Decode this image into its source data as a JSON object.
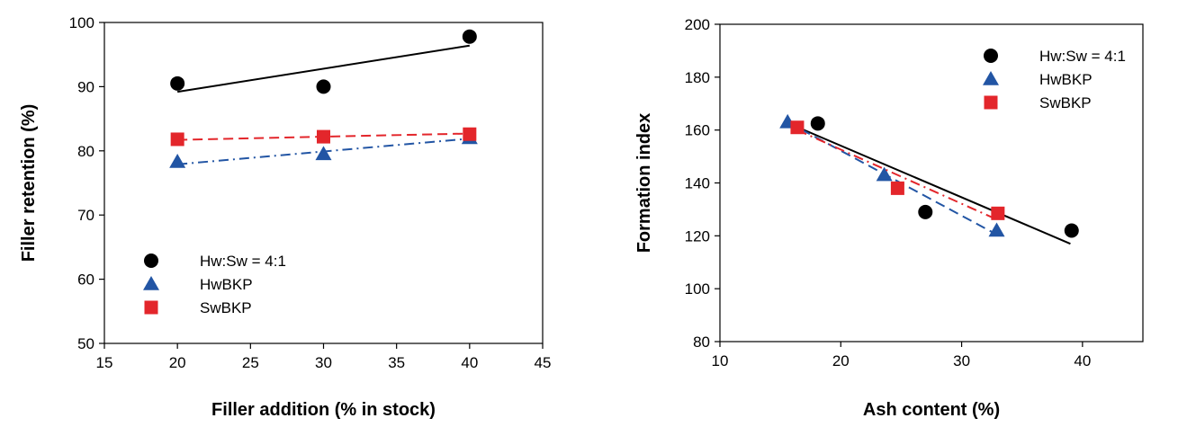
{
  "chart_data": [
    {
      "type": "scatter",
      "xlabel": "Filler addition (% in stock)",
      "ylabel": "Filler retention (%)",
      "xlim": [
        15,
        45
      ],
      "ylim": [
        50,
        100
      ],
      "xticks": [
        15,
        20,
        25,
        30,
        35,
        40,
        45
      ],
      "yticks": [
        50,
        60,
        70,
        80,
        90,
        100
      ],
      "grid": false,
      "legend_position": "bottom-left",
      "series": [
        {
          "name": "Hw:Sw = 4:1",
          "marker": "circle",
          "color": "#000000",
          "line_style": "solid",
          "points": [
            [
              20,
              90.5
            ],
            [
              30,
              90.0
            ],
            [
              40,
              97.8
            ]
          ],
          "fit": [
            [
              20,
              89.2
            ],
            [
              40,
              96.4
            ]
          ]
        },
        {
          "name": "HwBKP",
          "marker": "triangle",
          "color": "#2255a4",
          "line_style": "dashdot",
          "points": [
            [
              20,
              78.3
            ],
            [
              30,
              79.5
            ],
            [
              40,
              82.0
            ]
          ],
          "fit": [
            [
              20,
              77.9
            ],
            [
              40,
              81.9
            ]
          ]
        },
        {
          "name": "SwBKP",
          "marker": "square",
          "color": "#e3262b",
          "line_style": "dashed",
          "points": [
            [
              20,
              81.8
            ],
            [
              30,
              82.2
            ],
            [
              40,
              82.6
            ]
          ],
          "fit": [
            [
              20,
              81.7
            ],
            [
              40,
              82.7
            ]
          ]
        }
      ]
    },
    {
      "type": "scatter",
      "xlabel": "Ash content (%)",
      "ylabel": "Formation index",
      "xlim": [
        10,
        45
      ],
      "ylim": [
        80,
        200
      ],
      "xticks": [
        10,
        20,
        30,
        40
      ],
      "yticks": [
        80,
        100,
        120,
        140,
        160,
        180,
        200
      ],
      "grid": false,
      "legend_position": "top-right",
      "series": [
        {
          "name": "Hw:Sw = 4:1",
          "marker": "circle",
          "color": "#000000",
          "line_style": "solid",
          "points": [
            [
              18.1,
              162.5
            ],
            [
              27.0,
              129.0
            ],
            [
              39.1,
              122.0
            ]
          ],
          "fit": [
            [
              16.2,
              161.5
            ],
            [
              39.0,
              117.0
            ]
          ]
        },
        {
          "name": "HwBKP",
          "marker": "triangle",
          "color": "#2255a4",
          "line_style": "dashed",
          "points": [
            [
              15.6,
              163.0
            ],
            [
              23.6,
              143.0
            ],
            [
              32.9,
              122.0
            ]
          ],
          "fit": [
            [
              15.6,
              163.0
            ],
            [
              32.9,
              120.5
            ]
          ]
        },
        {
          "name": "SwBKP",
          "marker": "square",
          "color": "#e3262b",
          "line_style": "dashdot",
          "points": [
            [
              16.4,
              161.0
            ],
            [
              24.7,
              138.0
            ],
            [
              33.0,
              128.5
            ]
          ],
          "fit": [
            [
              16.4,
              160.0
            ],
            [
              33.0,
              126.0
            ]
          ]
        }
      ]
    }
  ]
}
